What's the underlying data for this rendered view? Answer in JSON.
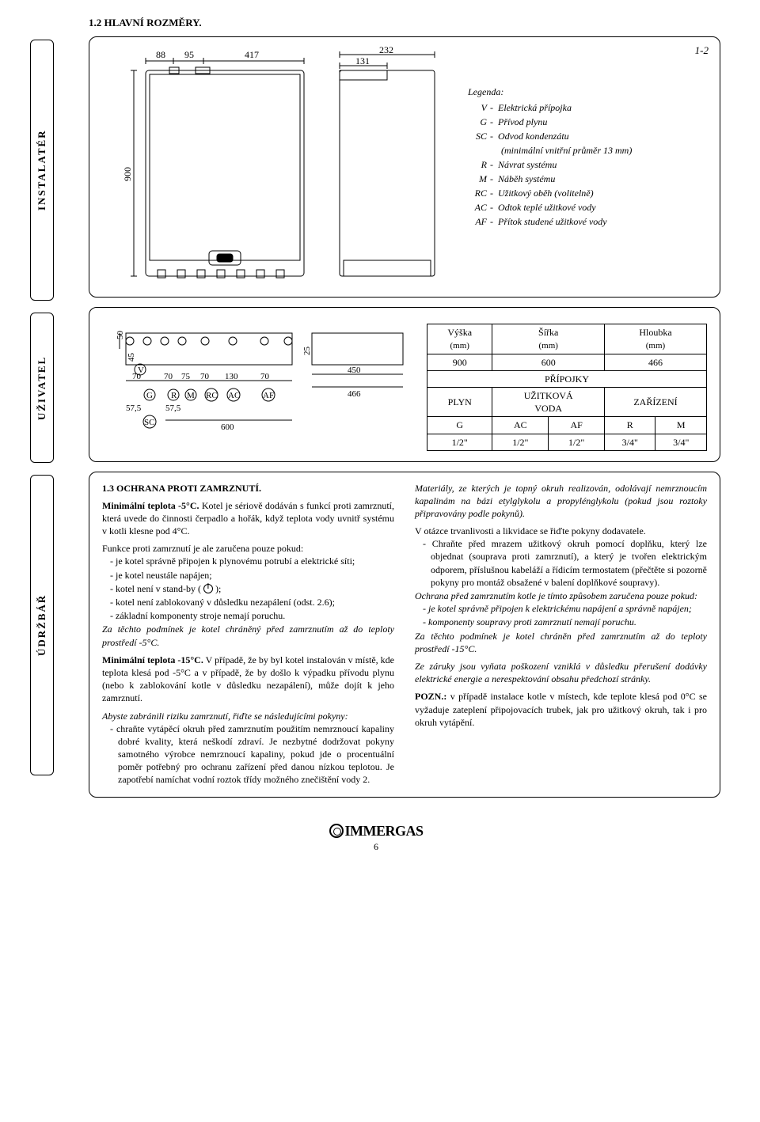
{
  "title": "1.2 HLAVNÍ ROZMĚRY.",
  "fig_label": "1-2",
  "sidebars": {
    "installer": "INSTALATÉR",
    "user": "UŽIVATEL",
    "service": "ÚDRŽBÁŘ"
  },
  "figure": {
    "top_dims": {
      "a": "88",
      "b": "95",
      "c": "417",
      "overall": "232",
      "right_inner": "131"
    },
    "left_height": "900"
  },
  "legend": {
    "header": "Legenda:",
    "items": [
      {
        "k": "V",
        "v": "Elektrická přípojka"
      },
      {
        "k": "G",
        "v": "Přívod plynu"
      },
      {
        "k": "SC",
        "v": "Odvod kondenzátu"
      },
      {
        "k": "",
        "v": "(minimální vnitřní průměr 13 mm)",
        "indent": true
      },
      {
        "k": "R",
        "v": "Návrat systému"
      },
      {
        "k": "M",
        "v": "Náběh systému"
      },
      {
        "k": "RC",
        "v": "Užitkový oběh (volitelně)"
      },
      {
        "k": "AC",
        "v": "Odtok teplé užitkové vody"
      },
      {
        "k": "AF",
        "v": "Přítok studené užitkové vody"
      }
    ]
  },
  "dims_bottom": {
    "left_nums": {
      "h50": "50",
      "h45": "45",
      "pitch": [
        "70",
        "70",
        "75",
        "70",
        "130",
        "70"
      ],
      "base_a": "57,5",
      "base_b": "57,5",
      "total": "600"
    },
    "labels_circles": [
      "V",
      "G",
      "R",
      "M",
      "RC",
      "AC",
      "AF",
      "SC"
    ],
    "right_nums": {
      "h25": "25",
      "w450": "450",
      "w466": "466"
    }
  },
  "spec_table": {
    "headers": [
      "Výška",
      "Šířka",
      "Hloubka"
    ],
    "unit": "(mm)",
    "dims": [
      "900",
      "600",
      "466"
    ],
    "connections_hdr": "PŘÍPOJKY",
    "row2": {
      "plyn": "PLYN",
      "voda_top": "UŽITKOVÁ",
      "voda_bot": "VODA",
      "zar": "ZAŘÍZENÍ"
    },
    "row3": [
      "G",
      "AC",
      "AF",
      "R",
      "M"
    ],
    "row4": [
      "1/2\"",
      "1/2\"",
      "1/2\"",
      "3/4\"",
      "3/4\""
    ]
  },
  "section13": {
    "heading": "1.3 OCHRANA PROTI ZAMRZNUTÍ.",
    "p1_lead": "Minimální teplota -5°C.",
    "p1": " Kotel je sériově dodáván s funkcí proti zamrznutí, která uvede do činnosti čerpadlo a hořák, když teplota vody uvnitř systému v kotli klesne pod 4°C.",
    "p2": "Funkce proti zamrznutí je ale zaručena pouze pokud:",
    "bullets1": [
      "je kotel správně připojen k plynovému potrubí a elektrické síti;",
      "je kotel neustále napájen;",
      "kotel není v stand-by ( @POWER@ );",
      "kotel není zablokovaný v důsledku nezapálení (odst. 2.6);",
      "základní komponenty stroje nemají poruchu."
    ],
    "p3_ital": "Za těchto podmínek je kotel chráněný před zamrznutím až do teploty prostředí -5°C.",
    "p4_lead": "Minimální teplota -15°C.",
    "p4": " V případě, že by byl kotel instalován v místě, kde teplota klesá pod -5°C a v případě, že by došlo k výpadku přívodu plynu (nebo k zablokování kotle v důsledku nezapálení), může dojít k jeho zamrznutí.",
    "p5_ital": "Abyste zabránili riziku zamrznutí, řiďte se následujícími pokyny:",
    "bullets2": [
      "chraňte vytápěcí okruh před zamrznutím použitím nemrznoucí kapaliny dobré kvality, která neškodí zdraví. Je nezbytné dodržovat pokyny samotného výrobce nemrznoucí kapaliny, pokud jde o procentuální poměr potřebný pro ochranu zařízení před danou nízkou teplotou. Je zapotřebí namíchat vodní roztok třídy možného znečištění vody 2."
    ],
    "col2_p1_ital": "Materiály, ze kterých je topný okruh realizován, odolávají nemrznoucím kapalinám na bázi etylglykolu a propylénglykolu (pokud jsou roztoky připravovány podle pokynů).",
    "col2_p2": "V otázce trvanlivosti a likvidace se řiďte pokyny dodavatele.",
    "col2_bullets": [
      "Chraňte před mrazem užitkový okruh pomocí doplňku, který lze objednat (souprava proti zamrznutí), a který je tvořen elektrickým odporem, příslušnou kabeláží a řídicím termostatem (přečtěte si pozorně pokyny pro montáž obsažené v balení doplňkové soupravy)."
    ],
    "col2_p3_ital": "Ochrana před zamrznutím kotle je tímto způsobem zaručena pouze pokud:",
    "col2_bullets2_ital": [
      "je kotel správně připojen k elektrickému napájení a správně napájen;",
      "komponenty soupravy proti zamrznutí nemají poruchu."
    ],
    "col2_p4_ital": "Za těchto podmínek je kotel chráněn před zamrznutím až do teploty prostředí -15°C.",
    "col2_p5_ital": "Ze záruky jsou vyňata poškození vzniklá v důsledku přerušení dodávky elektrické energie a nerespektování obsahu předchozí stránky.",
    "col2_pozn_lead": "POZN.:",
    "col2_pozn": " v případě instalace kotle v místech, kde teplote klesá pod 0°C se vyžaduje zateplení připojovacích trubek, jak pro užitkový okruh, tak i pro okruh vytápění."
  },
  "footer": {
    "brand": "IMMERGAS",
    "page": "6"
  }
}
